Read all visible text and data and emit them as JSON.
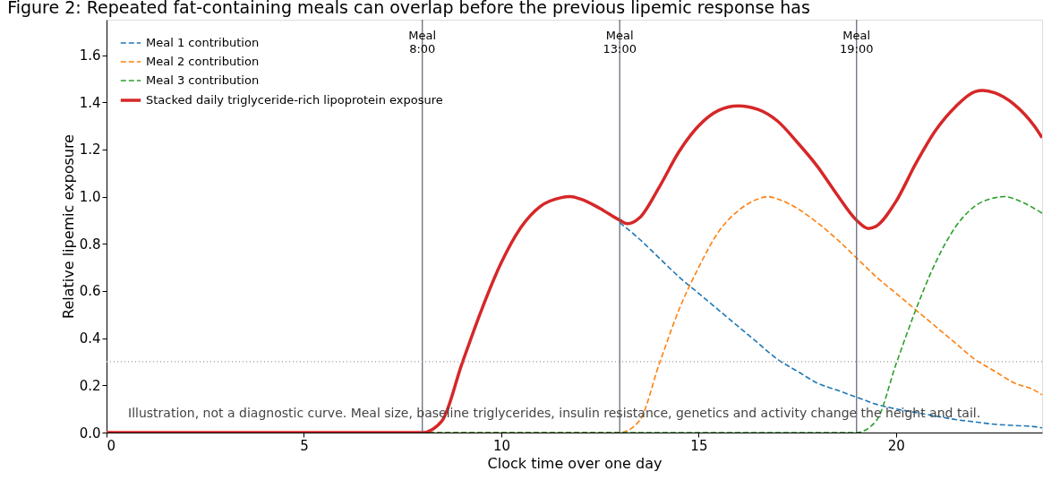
{
  "chart_data": {
    "type": "line",
    "title": "Figure 2: Repeated fat-containing meals can overlap before the previous lipemic response has",
    "xlabel": "Clock time over one day",
    "ylabel": "Relative lipemic exposure",
    "xlim": [
      0,
      23.7
    ],
    "ylim": [
      0,
      1.75
    ],
    "xticks": [
      0,
      5,
      10,
      15,
      20
    ],
    "yticks": [
      {
        "value": 0,
        "label": "0.0"
      },
      {
        "value": 0.2,
        "label": "0.2"
      },
      {
        "value": 0.4,
        "label": "0.4"
      },
      {
        "value": 0.6,
        "label": "0.6"
      },
      {
        "value": 0.8,
        "label": "0.8"
      },
      {
        "value": 1.0,
        "label": "1.0"
      },
      {
        "value": 1.2,
        "label": "1.2"
      },
      {
        "value": 1.4,
        "label": "1.4"
      },
      {
        "value": 1.6,
        "label": "1.6"
      }
    ],
    "grid": false,
    "legend": "top left",
    "marker": "none",
    "series": [
      {
        "name": "Meal 1 contribution",
        "color": "#1f77b4",
        "line_style": "dashed",
        "x": [
          13,
          13.5,
          14,
          14.5,
          15,
          15.5,
          16,
          16.5,
          17,
          17.5,
          18,
          18.5,
          19,
          19.5,
          20,
          20.5,
          21,
          21.5,
          22,
          22.5,
          23,
          23.5,
          23.7
        ],
        "values": [
          0.89,
          0.82,
          0.74,
          0.66,
          0.59,
          0.52,
          0.45,
          0.38,
          0.31,
          0.26,
          0.21,
          0.18,
          0.15,
          0.12,
          0.1,
          0.085,
          0.07,
          0.055,
          0.045,
          0.035,
          0.03,
          0.025,
          0.02
        ]
      },
      {
        "name": "Meal 2 contribution",
        "color": "#ff7f0e",
        "line_style": "dashed",
        "x": [
          0,
          13,
          13.5,
          14,
          14.5,
          15,
          15.5,
          16,
          16.5,
          16.75,
          17,
          17.5,
          18,
          18.5,
          19,
          19.5,
          20,
          20.5,
          21,
          21.5,
          22,
          22.5,
          23,
          23.5,
          23.7
        ],
        "values": [
          0,
          0,
          0.05,
          0.29,
          0.52,
          0.7,
          0.85,
          0.94,
          0.99,
          1.0,
          0.99,
          0.95,
          0.89,
          0.82,
          0.74,
          0.66,
          0.59,
          0.52,
          0.45,
          0.38,
          0.31,
          0.26,
          0.21,
          0.18,
          0.16
        ]
      },
      {
        "name": "Meal 3 contribution",
        "color": "#2ca02c",
        "line_style": "dashed",
        "x": [
          0,
          19,
          19.5,
          20,
          20.5,
          21,
          21.5,
          22,
          22.5,
          22.75,
          23,
          23.5,
          23.7
        ],
        "values": [
          0,
          0,
          0.05,
          0.29,
          0.52,
          0.72,
          0.87,
          0.96,
          0.995,
          1.0,
          0.99,
          0.95,
          0.93
        ]
      },
      {
        "name": "Stacked daily triglyceride-rich lipoprotein exposure",
        "color": "#d62728",
        "line_style": "solid",
        "x": [
          0,
          8,
          8.5,
          9,
          9.5,
          10,
          10.5,
          11,
          11.5,
          11.75,
          12,
          12.5,
          13,
          13.2,
          13.5,
          14,
          14.5,
          15,
          15.5,
          16,
          16.5,
          17,
          17.5,
          18,
          18.5,
          19,
          19.3,
          19.5,
          20,
          20.5,
          21,
          21.5,
          22,
          22.2,
          22.5,
          23,
          23.5,
          23.7
        ],
        "values": [
          0,
          0,
          0.05,
          0.29,
          0.52,
          0.72,
          0.87,
          0.96,
          0.995,
          1.0,
          0.99,
          0.95,
          0.9,
          0.885,
          0.91,
          1.04,
          1.19,
          1.3,
          1.365,
          1.385,
          1.37,
          1.32,
          1.23,
          1.13,
          1.01,
          0.9,
          0.865,
          0.875,
          0.98,
          1.14,
          1.28,
          1.38,
          1.445,
          1.45,
          1.44,
          1.39,
          1.3,
          1.25
        ]
      }
    ],
    "ref_lines": [
      {
        "axis": "x",
        "value": 8,
        "label": "Meal 8:00",
        "color": "#5a6270",
        "line_style": "solid"
      },
      {
        "axis": "x",
        "value": 13,
        "label": "Meal 13:00",
        "color": "#5a6270",
        "line_style": "solid"
      },
      {
        "axis": "x",
        "value": 19,
        "label": "Meal 19:00",
        "color": "#5a6270",
        "line_style": "solid"
      },
      {
        "axis": "y",
        "value": 0.3,
        "color": "#999999",
        "line_style": "dotted"
      }
    ],
    "annotations": [
      "Illustration, not a diagnostic curve. Meal size, baseline triglycerides, insulin resistance, genetics and activity change the height and tail."
    ]
  }
}
